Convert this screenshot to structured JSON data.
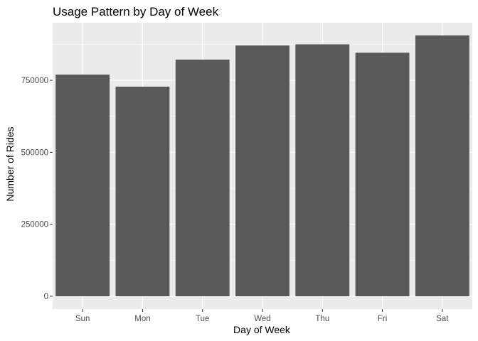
{
  "chart_data": {
    "type": "bar",
    "title": "Usage Pattern by Day of Week",
    "xlabel": "Day of Week",
    "ylabel": "Number of Rides",
    "categories": [
      "Sun",
      "Mon",
      "Tue",
      "Wed",
      "Thu",
      "Fri",
      "Sat"
    ],
    "values": [
      770000,
      728000,
      822000,
      871000,
      875000,
      846000,
      906000
    ],
    "ylim": [
      0,
      950000
    ],
    "yticks": [
      0,
      250000,
      500000,
      750000
    ],
    "ytick_labels": [
      "0",
      "250000",
      "500000",
      "750000"
    ],
    "grid": true,
    "colors": {
      "panel": "#ebebeb",
      "grid_major": "#ffffff",
      "bar": "#595959",
      "tick_text": "#4d4d4d",
      "tick_mark": "#333333"
    }
  }
}
